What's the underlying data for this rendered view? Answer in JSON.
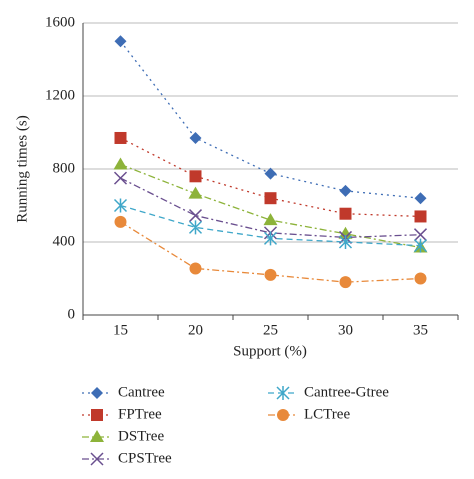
{
  "chart_data": {
    "type": "line",
    "x_label": "Support (%)",
    "y_label": "Running times (s)",
    "categories": [
      "15",
      "20",
      "25",
      "30",
      "35"
    ],
    "series": [
      {
        "name": "Cantree",
        "color": "#3e6db5",
        "values": [
          1500,
          970,
          775,
          680,
          640
        ]
      },
      {
        "name": "FPTree",
        "color": "#c0392b",
        "values": [
          970,
          760,
          640,
          555,
          540
        ]
      },
      {
        "name": "DSTree",
        "color": "#8db33a",
        "values": [
          825,
          665,
          520,
          445,
          370
        ]
      },
      {
        "name": "CPSTree",
        "color": "#6a4f8f",
        "values": [
          750,
          545,
          450,
          425,
          440
        ]
      },
      {
        "name": "Cantree-Gtree",
        "color": "#3fa7c9",
        "values": [
          600,
          480,
          420,
          400,
          380
        ]
      },
      {
        "name": "LCTree",
        "color": "#e8893a",
        "values": [
          510,
          255,
          220,
          180,
          200
        ]
      }
    ],
    "ylim": [
      0,
      1600
    ],
    "yticks": [
      0,
      400,
      800,
      1200,
      1600
    ],
    "grid": true,
    "legend": "bottom"
  }
}
